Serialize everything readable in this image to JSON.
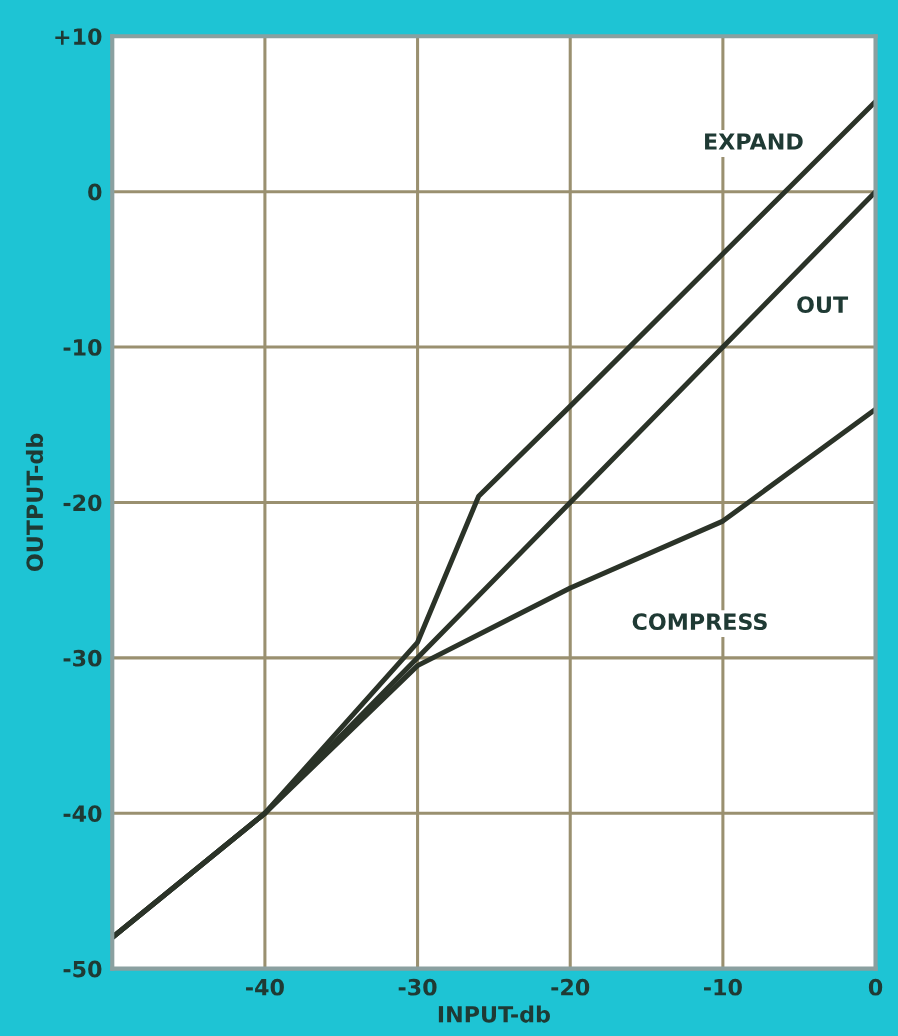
{
  "chart_data": {
    "type": "line",
    "xlabel": "INPUT-db",
    "ylabel": "OUTPUT-db",
    "xlim": [
      -50,
      0
    ],
    "ylim": [
      -50,
      10
    ],
    "xticks": [
      -40,
      -30,
      -20,
      -10,
      0
    ],
    "yticks": [
      -50,
      -40,
      -30,
      -20,
      -10,
      0,
      {
        "value": 10,
        "label": "+10"
      }
    ],
    "grid": true,
    "legend": false,
    "marker": "none",
    "line_style": "solid",
    "series": [
      {
        "name": "EXPAND",
        "color": "#2b3328",
        "x": [
          -50,
          -40,
          -30,
          -26,
          -20,
          -10,
          0
        ],
        "values": [
          -48,
          -40,
          -29,
          -19.6,
          -13.8,
          -4,
          5.8
        ]
      },
      {
        "name": "OUT",
        "color": "#2b3328",
        "x": [
          -50,
          -40,
          -30,
          -20,
          -10,
          0
        ],
        "values": [
          -48,
          -40,
          -30,
          -20,
          -10,
          0
        ]
      },
      {
        "name": "COMPRESS",
        "color": "#2b3328",
        "x": [
          -50,
          -40,
          -30,
          -20,
          -10,
          0
        ],
        "values": [
          -48,
          -40,
          -30.5,
          -25.5,
          -21.2,
          -14
        ]
      }
    ]
  }
}
